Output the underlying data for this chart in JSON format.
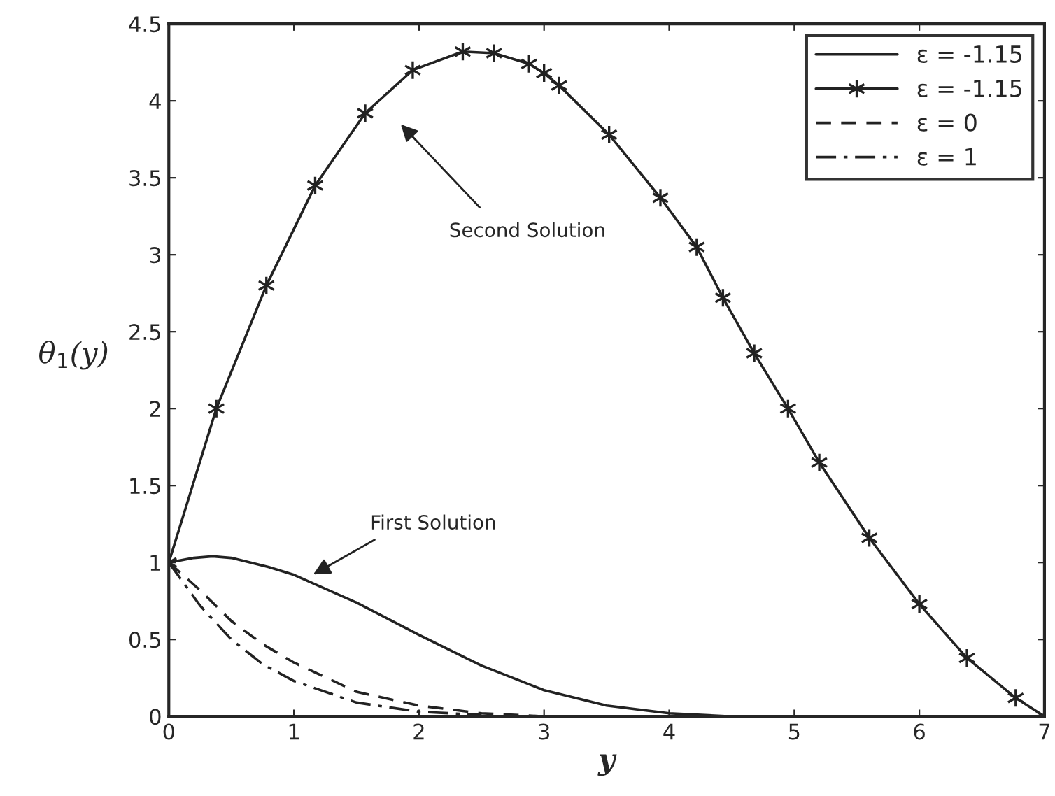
{
  "chart_data": {
    "type": "line",
    "xlabel": "y",
    "ylabel": "θ$_{1}$(y)",
    "xlim": [
      0,
      7
    ],
    "ylim": [
      0,
      4.5
    ],
    "xticks": [
      0,
      1,
      2,
      3,
      4,
      5,
      6,
      7
    ],
    "yticks": [
      0,
      0.5,
      1,
      1.5,
      2,
      2.5,
      3,
      3.5,
      4,
      4.5
    ],
    "grid": false,
    "legend": "top right",
    "series": [
      {
        "name": "ε = -1.15",
        "color": "#222222",
        "line_style": "solid",
        "marker": "none",
        "x": [
          0,
          0.2,
          0.35,
          0.5,
          0.8,
          1.0,
          1.5,
          2.0,
          2.5,
          3.0,
          3.5,
          4.0,
          4.5
        ],
        "values": [
          1,
          1.03,
          1.04,
          1.03,
          0.97,
          0.92,
          0.74,
          0.53,
          0.33,
          0.17,
          0.07,
          0.02,
          0
        ]
      },
      {
        "name": "ε = -1.15",
        "color": "#222222",
        "line_style": "solid",
        "marker": "cross",
        "x": [
          0,
          0.38,
          0.78,
          1.17,
          1.57,
          1.95,
          2.35,
          2.6,
          2.88,
          3.0,
          3.12,
          3.52,
          3.93,
          4.22,
          4.43,
          4.68,
          4.95,
          5.2,
          5.6,
          6.0,
          6.38,
          6.77,
          7.0
        ],
        "values": [
          1,
          2.0,
          2.8,
          3.45,
          3.92,
          4.2,
          4.32,
          4.31,
          4.24,
          4.18,
          4.1,
          3.78,
          3.37,
          3.05,
          2.72,
          2.36,
          2.0,
          1.65,
          1.16,
          0.73,
          0.38,
          0.12,
          0
        ]
      },
      {
        "name": "ε = 0",
        "color": "#222222",
        "line_style": "dashed",
        "marker": "none",
        "x": [
          0,
          0.25,
          0.5,
          0.75,
          1.0,
          1.5,
          2.0,
          2.5,
          3.0
        ],
        "values": [
          1,
          0.82,
          0.62,
          0.47,
          0.35,
          0.16,
          0.07,
          0.02,
          0
        ]
      },
      {
        "name": "ε = 1",
        "color": "#222222",
        "line_style": "dashdot",
        "marker": "none",
        "x": [
          0,
          0.25,
          0.5,
          0.75,
          1.0,
          1.5,
          2.0,
          2.5
        ],
        "values": [
          1,
          0.72,
          0.5,
          0.34,
          0.23,
          0.09,
          0.03,
          0.01
        ]
      }
    ],
    "annotations": [
      "Second Solution",
      "First Solution"
    ]
  }
}
